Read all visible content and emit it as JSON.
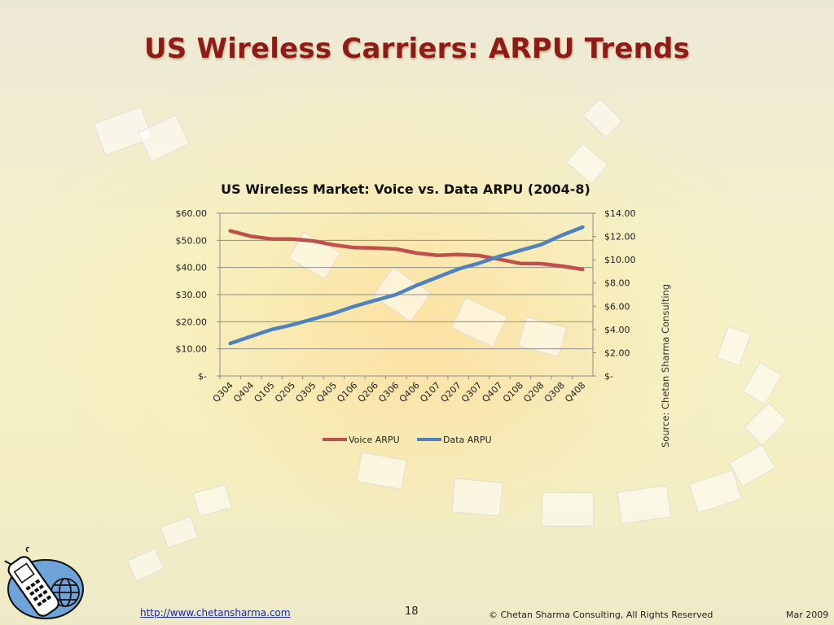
{
  "slide": {
    "title": "US Wireless Carriers: ARPU Trends",
    "source_note": "Source: Chetan Sharma Consulting",
    "footer_link": "http://www.chetansharma.com",
    "page_number": "18",
    "copyright": "© Chetan Sharma Consulting, All Rights Reserved",
    "date": "Mar 2009"
  },
  "colors": {
    "title": "#8e1b14",
    "voice_series": "#c0504d",
    "data_series": "#4f81bd",
    "link": "#1a2b9c"
  },
  "icons": {
    "logo": "mobile-phone-globe-icon"
  },
  "chart_data": {
    "type": "line",
    "title": "US Wireless Market: Voice vs. Data ARPU (2004-8)",
    "categories": [
      "Q304",
      "Q404",
      "Q105",
      "Q205",
      "Q305",
      "Q405",
      "Q106",
      "Q206",
      "Q306",
      "Q406",
      "Q107",
      "Q207",
      "Q307",
      "Q407",
      "Q108",
      "Q208",
      "Q308",
      "Q408"
    ],
    "series": [
      {
        "name": "Voice ARPU",
        "axis": "left",
        "color": "#c0504d",
        "values": [
          53.5,
          51.5,
          50.5,
          50.5,
          49.8,
          48.3,
          47.3,
          47.2,
          46.8,
          45.3,
          44.5,
          44.8,
          44.4,
          43.0,
          41.5,
          41.4,
          40.5,
          39.3
        ]
      },
      {
        "name": "Data ARPU",
        "axis": "right",
        "color": "#4f81bd",
        "values": [
          2.8,
          3.4,
          4.0,
          4.4,
          4.9,
          5.4,
          6.0,
          6.5,
          7.0,
          7.8,
          8.5,
          9.2,
          9.7,
          10.3,
          10.8,
          11.3,
          12.1,
          12.8
        ]
      }
    ],
    "ylim_left": [
      0,
      60
    ],
    "ylim_right": [
      0,
      14
    ],
    "left_ticks": [
      "$-",
      "$10.00",
      "$20.00",
      "$30.00",
      "$40.00",
      "$50.00",
      "$60.00"
    ],
    "right_ticks": [
      "$-",
      "$2.00",
      "$4.00",
      "$6.00",
      "$8.00",
      "$10.00",
      "$12.00",
      "$14.00"
    ],
    "grid": true,
    "legend_position": "bottom"
  }
}
